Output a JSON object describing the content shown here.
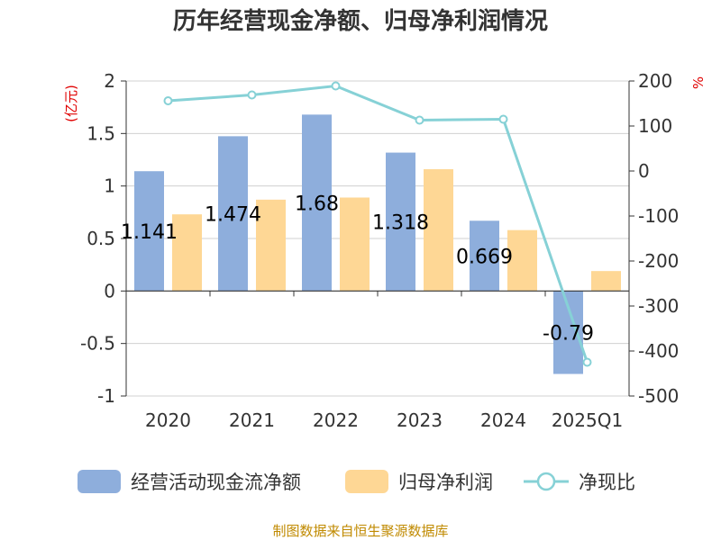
{
  "chart_data": {
    "type": "bar",
    "title": "历年经营现金净额、归母净利润情况",
    "categories": [
      "2020",
      "2021",
      "2022",
      "2023",
      "2024",
      "2025Q1"
    ],
    "left_axis": {
      "unit": "(亿元)",
      "range": [
        -1,
        2
      ],
      "ticks": [
        "2",
        "1.5",
        "1",
        "0.5",
        "0",
        "-0.5",
        "-1"
      ]
    },
    "right_axis": {
      "unit": "%",
      "range": [
        -500,
        200
      ],
      "ticks": [
        "200",
        "100",
        "0",
        "-100",
        "-200",
        "-300",
        "-400",
        "-500"
      ]
    },
    "series": [
      {
        "name": "经营活动现金流净额",
        "type": "bar",
        "axis": "left",
        "color": "#8eaedc",
        "values": [
          1.141,
          1.474,
          1.68,
          1.318,
          0.669,
          -0.79
        ],
        "labels": [
          "1.141",
          "1.474",
          "1.68",
          "1.318",
          "0.669",
          "-0.79"
        ]
      },
      {
        "name": "归母净利润",
        "type": "bar",
        "axis": "left",
        "color": "#fed795",
        "values": [
          0.73,
          0.87,
          0.89,
          1.16,
          0.58,
          0.19
        ]
      },
      {
        "name": "净现比",
        "type": "line",
        "axis": "right",
        "color": "#86d1d6",
        "values": [
          156,
          169,
          189,
          113,
          115,
          -425
        ]
      }
    ],
    "grid": true,
    "legend": "bottom"
  },
  "footer": {
    "source": "制图数据来自恒生聚源数据库"
  }
}
